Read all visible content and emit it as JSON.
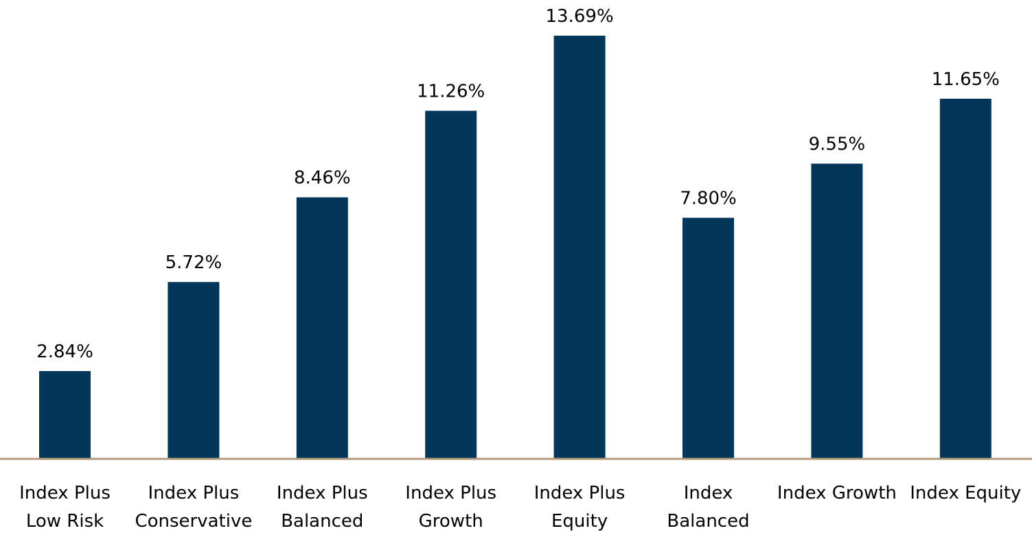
{
  "chart_data": {
    "type": "bar",
    "title": "",
    "xlabel": "",
    "ylabel": "",
    "categories": [
      [
        "Index Plus",
        "Low Risk"
      ],
      [
        "Index Plus",
        "Conservative"
      ],
      [
        "Index Plus",
        "Balanced"
      ],
      [
        "Index Plus",
        "Growth"
      ],
      [
        "Index Plus",
        "Equity"
      ],
      [
        "Index",
        "Balanced"
      ],
      [
        "Index Growth"
      ],
      [
        "Index Equity"
      ]
    ],
    "values": [
      2.84,
      5.72,
      8.46,
      11.26,
      13.69,
      7.8,
      9.55,
      11.65
    ],
    "value_labels": [
      "2.84%",
      "5.72%",
      "8.46%",
      "11.26%",
      "13.69%",
      "7.80%",
      "9.55%",
      "11.65%"
    ],
    "ylim": [
      0,
      13.69
    ],
    "grid": false,
    "legend": "none",
    "colors": {
      "bar": "#02375b",
      "axis": "#b39a7b",
      "text": "#000000"
    }
  }
}
